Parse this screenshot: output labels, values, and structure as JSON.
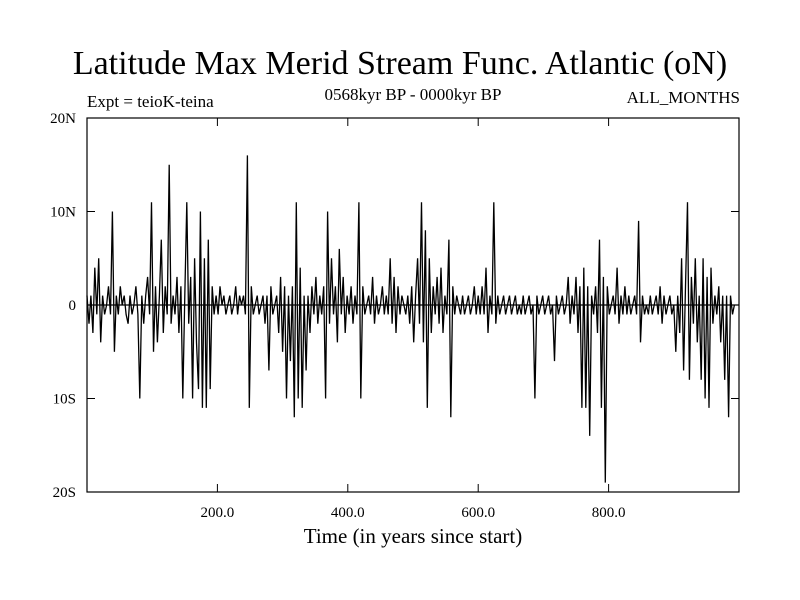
{
  "chart_data": {
    "type": "line",
    "title": "Latitude Max Merid Stream Func. Atlantic (oN)",
    "subtitle_left": "Expt = teioK-teina",
    "subtitle_center": "0568kyr BP - 0000kyr BP",
    "subtitle_right": "ALL_MONTHS",
    "xlabel": "Time (in years since start)",
    "ylabel": "",
    "xlim": [
      0,
      1000
    ],
    "ylim": [
      -20,
      20
    ],
    "x_ticks": [
      {
        "value": 200,
        "label": "200.0"
      },
      {
        "value": 400,
        "label": "400.0"
      },
      {
        "value": 600,
        "label": "600.0"
      },
      {
        "value": 800,
        "label": "800.0"
      }
    ],
    "y_ticks": [
      {
        "value": 20,
        "label": "20N"
      },
      {
        "value": 10,
        "label": "10N"
      },
      {
        "value": 0,
        "label": "0"
      },
      {
        "value": -10,
        "label": "10S"
      },
      {
        "value": -20,
        "label": "20S"
      }
    ],
    "zero_line": true,
    "grid": false,
    "series": [
      {
        "color": "#000000",
        "points": [
          [
            0,
            1
          ],
          [
            3,
            -2
          ],
          [
            6,
            1
          ],
          [
            9,
            -3
          ],
          [
            12,
            4
          ],
          [
            15,
            -1
          ],
          [
            18,
            5
          ],
          [
            21,
            -4
          ],
          [
            24,
            1
          ],
          [
            27,
            -1
          ],
          [
            30,
            0
          ],
          [
            33,
            2
          ],
          [
            36,
            -1
          ],
          [
            39,
            10
          ],
          [
            42,
            -5
          ],
          [
            45,
            1
          ],
          [
            48,
            -1
          ],
          [
            51,
            2
          ],
          [
            54,
            0
          ],
          [
            57,
            1
          ],
          [
            60,
            -1
          ],
          [
            63,
            -2
          ],
          [
            66,
            1
          ],
          [
            69,
            -1
          ],
          [
            72,
            0
          ],
          [
            75,
            2
          ],
          [
            78,
            -1
          ],
          [
            81,
            -10
          ],
          [
            84,
            1
          ],
          [
            87,
            -2
          ],
          [
            90,
            1
          ],
          [
            93,
            3
          ],
          [
            96,
            -1
          ],
          [
            99,
            11
          ],
          [
            102,
            -5
          ],
          [
            105,
            2
          ],
          [
            108,
            -4
          ],
          [
            111,
            1
          ],
          [
            114,
            7
          ],
          [
            117,
            -3
          ],
          [
            120,
            2
          ],
          [
            123,
            -1
          ],
          [
            126,
            15
          ],
          [
            129,
            -2
          ],
          [
            132,
            1
          ],
          [
            135,
            -1
          ],
          [
            138,
            3
          ],
          [
            141,
            -3
          ],
          [
            144,
            2
          ],
          [
            147,
            -10
          ],
          [
            150,
            1
          ],
          [
            153,
            11
          ],
          [
            156,
            -2
          ],
          [
            159,
            3
          ],
          [
            162,
            -10
          ],
          [
            165,
            5
          ],
          [
            168,
            -4
          ],
          [
            171,
            -9
          ],
          [
            174,
            10
          ],
          [
            177,
            -11
          ],
          [
            180,
            5
          ],
          [
            183,
            -11
          ],
          [
            186,
            7
          ],
          [
            189,
            -9
          ],
          [
            192,
            2
          ],
          [
            195,
            -1
          ],
          [
            198,
            1
          ],
          [
            201,
            -1
          ],
          [
            204,
            2
          ],
          [
            207,
            0
          ],
          [
            210,
            1
          ],
          [
            213,
            -1
          ],
          [
            216,
            0
          ],
          [
            219,
            1
          ],
          [
            222,
            -1
          ],
          [
            225,
            0
          ],
          [
            228,
            2
          ],
          [
            231,
            -1
          ],
          [
            234,
            1
          ],
          [
            237,
            0
          ],
          [
            240,
            1
          ],
          [
            243,
            -1
          ],
          [
            246,
            16
          ],
          [
            249,
            -11
          ],
          [
            252,
            2
          ],
          [
            255,
            -1
          ],
          [
            258,
            0
          ],
          [
            261,
            1
          ],
          [
            264,
            -1
          ],
          [
            267,
            0
          ],
          [
            270,
            1
          ],
          [
            273,
            -2
          ],
          [
            276,
            1
          ],
          [
            279,
            -7
          ],
          [
            282,
            2
          ],
          [
            285,
            -1
          ],
          [
            288,
            0
          ],
          [
            291,
            1
          ],
          [
            294,
            -3
          ],
          [
            297,
            3
          ],
          [
            300,
            -5
          ],
          [
            303,
            2
          ],
          [
            306,
            -10
          ],
          [
            309,
            1
          ],
          [
            312,
            -6
          ],
          [
            315,
            2
          ],
          [
            318,
            -12
          ],
          [
            321,
            11
          ],
          [
            324,
            -10
          ],
          [
            327,
            4
          ],
          [
            330,
            -11
          ],
          [
            333,
            1
          ],
          [
            336,
            -7
          ],
          [
            339,
            1
          ],
          [
            342,
            -3
          ],
          [
            345,
            2
          ],
          [
            348,
            -1
          ],
          [
            351,
            3
          ],
          [
            354,
            -2
          ],
          [
            357,
            1
          ],
          [
            360,
            -1
          ],
          [
            363,
            2
          ],
          [
            366,
            -10
          ],
          [
            369,
            10
          ],
          [
            372,
            -2
          ],
          [
            375,
            5
          ],
          [
            378,
            -1
          ],
          [
            381,
            2
          ],
          [
            384,
            -4
          ],
          [
            387,
            6
          ],
          [
            390,
            -1
          ],
          [
            393,
            3
          ],
          [
            396,
            -3
          ],
          [
            399,
            1
          ],
          [
            402,
            -1
          ],
          [
            405,
            2
          ],
          [
            408,
            -2
          ],
          [
            411,
            1
          ],
          [
            414,
            -1
          ],
          [
            417,
            11
          ],
          [
            420,
            -10
          ],
          [
            423,
            2
          ],
          [
            426,
            -1
          ],
          [
            429,
            0
          ],
          [
            432,
            1
          ],
          [
            435,
            -1
          ],
          [
            438,
            3
          ],
          [
            441,
            -2
          ],
          [
            444,
            1
          ],
          [
            447,
            -1
          ],
          [
            450,
            0
          ],
          [
            453,
            2
          ],
          [
            456,
            -1
          ],
          [
            459,
            1
          ],
          [
            462,
            -1
          ],
          [
            465,
            5
          ],
          [
            468,
            -2
          ],
          [
            471,
            3
          ],
          [
            474,
            -3
          ],
          [
            477,
            2
          ],
          [
            480,
            -1
          ],
          [
            483,
            1
          ],
          [
            486,
            0
          ],
          [
            489,
            -1
          ],
          [
            492,
            1
          ],
          [
            495,
            -2
          ],
          [
            498,
            2
          ],
          [
            501,
            -4
          ],
          [
            504,
            1
          ],
          [
            507,
            5
          ],
          [
            510,
            -2
          ],
          [
            513,
            11
          ],
          [
            516,
            -4
          ],
          [
            519,
            8
          ],
          [
            522,
            -11
          ],
          [
            525,
            5
          ],
          [
            528,
            -3
          ],
          [
            531,
            2
          ],
          [
            534,
            -1
          ],
          [
            537,
            3
          ],
          [
            540,
            -2
          ],
          [
            543,
            4
          ],
          [
            546,
            -3
          ],
          [
            549,
            1
          ],
          [
            552,
            -1
          ],
          [
            555,
            7
          ],
          [
            558,
            -12
          ],
          [
            561,
            2
          ],
          [
            564,
            -1
          ],
          [
            567,
            1
          ],
          [
            570,
            0
          ],
          [
            573,
            -1
          ],
          [
            576,
            1
          ],
          [
            579,
            -1
          ],
          [
            582,
            0
          ],
          [
            585,
            1
          ],
          [
            588,
            -1
          ],
          [
            591,
            0
          ],
          [
            594,
            2
          ],
          [
            597,
            -1
          ],
          [
            600,
            1
          ],
          [
            603,
            -1
          ],
          [
            606,
            2
          ],
          [
            609,
            -1
          ],
          [
            612,
            4
          ],
          [
            615,
            -3
          ],
          [
            618,
            1
          ],
          [
            621,
            -1
          ],
          [
            624,
            11
          ],
          [
            627,
            -2
          ],
          [
            630,
            1
          ],
          [
            633,
            -1
          ],
          [
            636,
            0
          ],
          [
            639,
            1
          ],
          [
            642,
            -1
          ],
          [
            645,
            0
          ],
          [
            648,
            1
          ],
          [
            651,
            -1
          ],
          [
            654,
            0
          ],
          [
            657,
            1
          ],
          [
            660,
            -1
          ],
          [
            663,
            0
          ],
          [
            666,
            -1
          ],
          [
            669,
            1
          ],
          [
            672,
            -1
          ],
          [
            675,
            0
          ],
          [
            678,
            1
          ],
          [
            681,
            -1
          ],
          [
            684,
            0
          ],
          [
            687,
            -10
          ],
          [
            690,
            1
          ],
          [
            693,
            -1
          ],
          [
            696,
            0
          ],
          [
            699,
            1
          ],
          [
            702,
            -1
          ],
          [
            705,
            0
          ],
          [
            708,
            1
          ],
          [
            711,
            -1
          ],
          [
            714,
            0
          ],
          [
            717,
            -6
          ],
          [
            720,
            1
          ],
          [
            723,
            -1
          ],
          [
            726,
            0
          ],
          [
            729,
            1
          ],
          [
            732,
            -1
          ],
          [
            735,
            0
          ],
          [
            738,
            3
          ],
          [
            741,
            -2
          ],
          [
            744,
            1
          ],
          [
            747,
            -1
          ],
          [
            750,
            3
          ],
          [
            753,
            -3
          ],
          [
            756,
            2
          ],
          [
            759,
            -11
          ],
          [
            762,
            4
          ],
          [
            765,
            -11
          ],
          [
            768,
            2
          ],
          [
            771,
            -14
          ],
          [
            774,
            1
          ],
          [
            777,
            -1
          ],
          [
            780,
            2
          ],
          [
            783,
            -3
          ],
          [
            786,
            7
          ],
          [
            789,
            -11
          ],
          [
            792,
            3
          ],
          [
            795,
            -19
          ],
          [
            798,
            2
          ],
          [
            801,
            -1
          ],
          [
            804,
            0
          ],
          [
            807,
            1
          ],
          [
            810,
            -1
          ],
          [
            813,
            4
          ],
          [
            816,
            -2
          ],
          [
            819,
            1
          ],
          [
            822,
            -1
          ],
          [
            825,
            2
          ],
          [
            828,
            -1
          ],
          [
            831,
            1
          ],
          [
            834,
            -1
          ],
          [
            837,
            0
          ],
          [
            840,
            1
          ],
          [
            843,
            -1
          ],
          [
            846,
            9
          ],
          [
            849,
            -4
          ],
          [
            852,
            1
          ],
          [
            855,
            -1
          ],
          [
            858,
            0
          ],
          [
            861,
            -1
          ],
          [
            864,
            1
          ],
          [
            867,
            -1
          ],
          [
            870,
            0
          ],
          [
            873,
            1
          ],
          [
            876,
            -1
          ],
          [
            879,
            2
          ],
          [
            882,
            -2
          ],
          [
            885,
            1
          ],
          [
            888,
            -1
          ],
          [
            891,
            0
          ],
          [
            894,
            1
          ],
          [
            897,
            -1
          ],
          [
            900,
            0
          ],
          [
            903,
            -5
          ],
          [
            906,
            1
          ],
          [
            909,
            -3
          ],
          [
            912,
            5
          ],
          [
            915,
            -7
          ],
          [
            918,
            2
          ],
          [
            921,
            11
          ],
          [
            924,
            -8
          ],
          [
            927,
            3
          ],
          [
            930,
            -2
          ],
          [
            933,
            5
          ],
          [
            936,
            -4
          ],
          [
            939,
            1
          ],
          [
            942,
            -8
          ],
          [
            945,
            5
          ],
          [
            948,
            -10
          ],
          [
            951,
            3
          ],
          [
            954,
            -11
          ],
          [
            957,
            4
          ],
          [
            960,
            -2
          ],
          [
            963,
            1
          ],
          [
            966,
            -1
          ],
          [
            969,
            2
          ],
          [
            972,
            -4
          ],
          [
            975,
            1
          ],
          [
            978,
            -8
          ],
          [
            981,
            1
          ],
          [
            984,
            -12
          ],
          [
            987,
            1
          ],
          [
            990,
            -1
          ],
          [
            993,
            0
          ]
        ]
      }
    ]
  }
}
